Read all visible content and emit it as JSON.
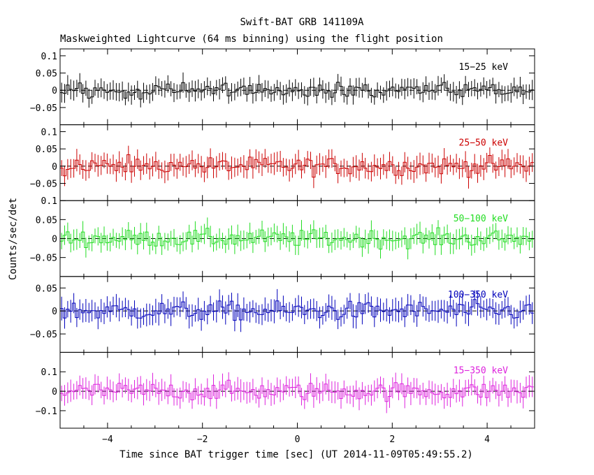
{
  "chart_data": {
    "type": "line",
    "title": "Swift-BAT GRB 141109A",
    "subtitle": "Maskweighted Lightcurve (64 ms binning) using the flight position",
    "xlabel": "Time since BAT trigger time [sec] (UT 2014-11-09T05:49:55.2)",
    "ylabel": "Counts/sec/det",
    "xlim": [
      -5,
      5
    ],
    "x_ticks": [
      -4,
      -2,
      0,
      2,
      4
    ],
    "x_tick_labels": [
      "−4",
      "−2",
      "0",
      "2",
      "4"
    ],
    "bin_width": 0.064,
    "grid": false,
    "panels": [
      {
        "name": "15-25 keV",
        "label": "15−25 keV",
        "color": "#000000",
        "ylim": [
          -0.1,
          0.12
        ],
        "y_ticks": [
          -0.05,
          0,
          0.05,
          0.1
        ],
        "y_tick_labels": [
          "−0.05",
          "0",
          "0.05",
          "0.1"
        ],
        "amplitude": 0.02,
        "error": 0.025
      },
      {
        "name": "25-50 keV",
        "label": "25−50 keV",
        "color": "#cc0000",
        "ylim": [
          -0.1,
          0.12
        ],
        "y_ticks": [
          -0.05,
          0,
          0.05,
          0.1
        ],
        "y_tick_labels": [
          "−0.05",
          "0",
          "0.05",
          "0.1"
        ],
        "amplitude": 0.025,
        "error": 0.028
      },
      {
        "name": "50-100 keV",
        "label": "50−100 keV",
        "color": "#22dd22",
        "ylim": [
          -0.1,
          0.1
        ],
        "y_ticks": [
          -0.05,
          0,
          0.05,
          0.1
        ],
        "y_tick_labels": [
          "−0.05",
          "0",
          "0.05",
          "0.1"
        ],
        "amplitude": 0.022,
        "error": 0.024
      },
      {
        "name": "100-350 keV",
        "label": "100−350 keV",
        "color": "#0000bb",
        "ylim": [
          -0.09,
          0.075
        ],
        "y_ticks": [
          -0.05,
          0,
          0.05
        ],
        "y_tick_labels": [
          "−0.05",
          "0",
          "0.05"
        ],
        "amplitude": 0.02,
        "error": 0.022
      },
      {
        "name": "15-350 keV",
        "label": "15−350 keV",
        "color": "#dd22dd",
        "ylim": [
          -0.19,
          0.2
        ],
        "y_ticks": [
          -0.1,
          0,
          0.1
        ],
        "y_tick_labels": [
          "−0.1",
          "0",
          "0.1"
        ],
        "amplitude": 0.045,
        "error": 0.05
      }
    ]
  }
}
